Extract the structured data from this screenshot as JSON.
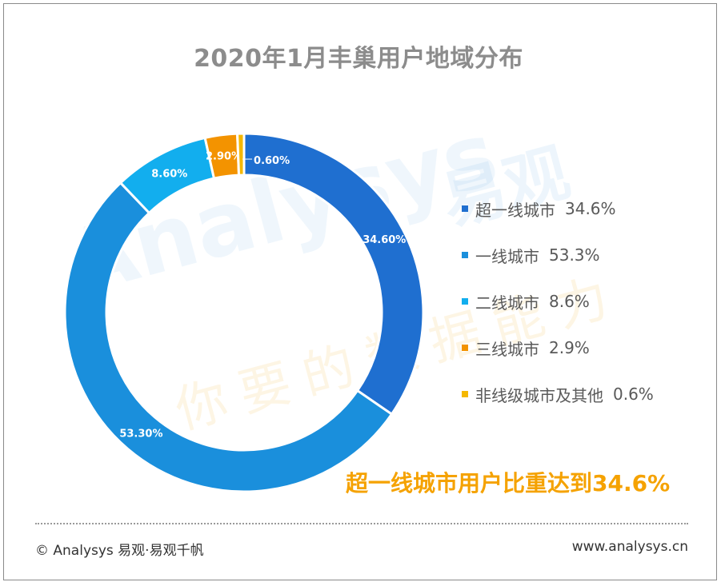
{
  "title": "2020年1月丰巢用户地域分布",
  "chart_data": {
    "type": "pie",
    "style": "donut",
    "title": "2020年1月丰巢用户地域分布",
    "unit": "%",
    "slices": [
      {
        "name": "超一线城市",
        "value": 34.6,
        "data_label": "34.60%",
        "legend_value": "34.6%",
        "color": "#1f6fd0"
      },
      {
        "name": "一线城市",
        "value": 53.3,
        "data_label": "53.30%",
        "legend_value": "53.3%",
        "color": "#1a8fdc"
      },
      {
        "name": "二线城市",
        "value": 8.6,
        "data_label": "8.60%",
        "legend_value": "8.6%",
        "color": "#12aeee"
      },
      {
        "name": "三线城市",
        "value": 2.9,
        "data_label": "2.90%",
        "legend_value": "2.9%",
        "color": "#f39300"
      },
      {
        "name": "非线级城市及其他",
        "value": 0.6,
        "data_label": "0.60%",
        "legend_value": "0.6%",
        "color": "#f5b800"
      }
    ],
    "legend_position": "right"
  },
  "highlight": "超一线城市用户比重达到34.6%",
  "footer": {
    "copyright": "© Analysys 易观·易观千帆",
    "website": "www.analysys.cn"
  },
  "watermark": {
    "brand": "Analysys",
    "brand_cn": "易观",
    "slogan": "你要的数据能力"
  }
}
